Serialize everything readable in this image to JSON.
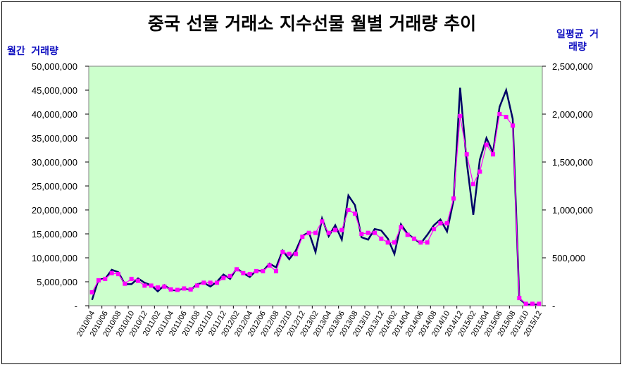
{
  "chart_data": {
    "type": "line",
    "title": "중국 선물 거래소 지수선물 월별 거래량 추이",
    "ylabel_left": "월간 거래량",
    "ylabel_right": "일평균 거래량",
    "y_left_ticks": [
      "-",
      "5,000,000",
      "10,000,000",
      "15,000,000",
      "20,000,000",
      "25,000,000",
      "30,000,000",
      "35,000,000",
      "40,000,000",
      "45,000,000",
      "50,000,000"
    ],
    "y_right_ticks": [
      "-",
      "500,000",
      "1,000,000",
      "1,500,000",
      "2,000,000",
      "2,500,000"
    ],
    "ylim_left": [
      0,
      50000000
    ],
    "ylim_right": [
      0,
      2500000
    ],
    "x_tick_labels": [
      "2010/04",
      "2010/06",
      "2010/08",
      "2010/10",
      "2010/12",
      "2011/02",
      "2011/04",
      "2011/06",
      "2011/08",
      "2011/10",
      "2011/12",
      "2012/02",
      "2012/04",
      "2012/06",
      "2012/08",
      "2012/10",
      "2012/12",
      "2013/02",
      "2013/04",
      "2013/06",
      "2013/08",
      "2013/10",
      "2013/12",
      "2014/02",
      "2014/04",
      "2014/06",
      "2014/08",
      "2014/10",
      "2014/12",
      "2015/02",
      "2015/04",
      "2015/06",
      "2015/08",
      "2015/10",
      "2015/12"
    ],
    "grid": false,
    "plot_background": "#ccffcc",
    "series": [
      {
        "name": "월간 거래량",
        "axis": "left",
        "color": "#000066",
        "values": [
          1200000,
          5500000,
          5600000,
          7500000,
          7000000,
          4500000,
          4500000,
          5700000,
          4800000,
          4300000,
          3000000,
          4300000,
          3300000,
          3200000,
          3600000,
          3300000,
          4500000,
          4800000,
          4000000,
          5000000,
          6500000,
          5600000,
          7800000,
          6800000,
          6000000,
          7400000,
          7200000,
          8800000,
          8000000,
          11500000,
          9700000,
          11500000,
          14600000,
          15300000,
          11200000,
          18200000,
          14500000,
          16800000,
          13800000,
          23000000,
          21000000,
          14300000,
          13800000,
          16000000,
          15700000,
          14000000,
          10800000,
          17000000,
          15000000,
          14000000,
          13000000,
          14800000,
          16800000,
          18000000,
          15500000,
          22000000,
          45500000,
          30000000,
          19000000,
          30500000,
          35000000,
          32000000,
          41500000,
          45000000,
          39000000,
          1500000,
          300000,
          300000,
          300000
        ]
      },
      {
        "name": "일평균 거래량",
        "axis": "right",
        "color": "#ff00ff",
        "values": [
          140000,
          265000,
          280000,
          340000,
          330000,
          230000,
          280000,
          260000,
          210000,
          210000,
          190000,
          200000,
          170000,
          165000,
          180000,
          170000,
          210000,
          240000,
          240000,
          240000,
          290000,
          310000,
          380000,
          340000,
          330000,
          360000,
          360000,
          420000,
          360000,
          560000,
          540000,
          540000,
          720000,
          760000,
          760000,
          880000,
          760000,
          790000,
          790000,
          1000000,
          960000,
          750000,
          760000,
          760000,
          700000,
          660000,
          660000,
          820000,
          740000,
          700000,
          660000,
          660000,
          800000,
          860000,
          860000,
          1120000,
          1980000,
          1580000,
          1270000,
          1400000,
          1680000,
          1580000,
          2000000,
          1970000,
          1880000,
          80000,
          20000,
          20000,
          20000
        ]
      }
    ]
  }
}
